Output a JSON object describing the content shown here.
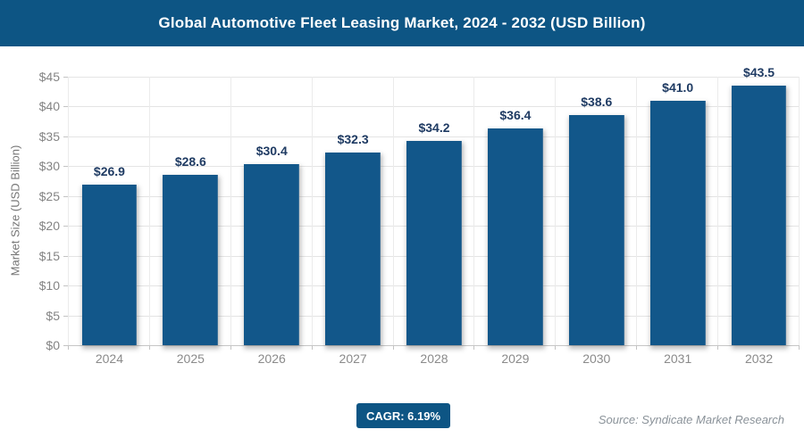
{
  "header": {
    "title": "Global Automotive Fleet Leasing Market, 2024 - 2032 (USD Billion)"
  },
  "chart_data": {
    "type": "bar",
    "title": "Global Automotive Fleet Leasing Market, 2024 - 2032 (USD Billion)",
    "categories": [
      "2024",
      "2025",
      "2026",
      "2027",
      "2028",
      "2029",
      "2030",
      "2031",
      "2032"
    ],
    "values": [
      26.9,
      28.6,
      30.4,
      32.3,
      34.2,
      36.4,
      38.6,
      41.0,
      43.5
    ],
    "data_labels": [
      "$26.9",
      "$28.6",
      "$30.4",
      "$32.3",
      "$34.2",
      "$36.4",
      "$38.6",
      "$41.0",
      "$43.5"
    ],
    "value_prefix": "$",
    "xlabel": "",
    "ylabel": "Market Size (USD Billion)",
    "ylim": [
      0,
      45
    ],
    "ytick_step": 5,
    "ytick_labels": [
      "$0",
      "$5",
      "$10",
      "$15",
      "$20",
      "$25",
      "$30",
      "$35",
      "$40",
      "$45"
    ],
    "grid": true,
    "legend_position": "none",
    "colors": {
      "header_bg": "#0d5584",
      "bar_fill": "#12578a",
      "data_label": "#1f3b63",
      "axis_text": "#8a8a8a",
      "gridline": "#e4e4e4"
    }
  },
  "footer": {
    "cagr_label": "CAGR: 6.19%",
    "source": "Source: Syndicate Market Research"
  }
}
